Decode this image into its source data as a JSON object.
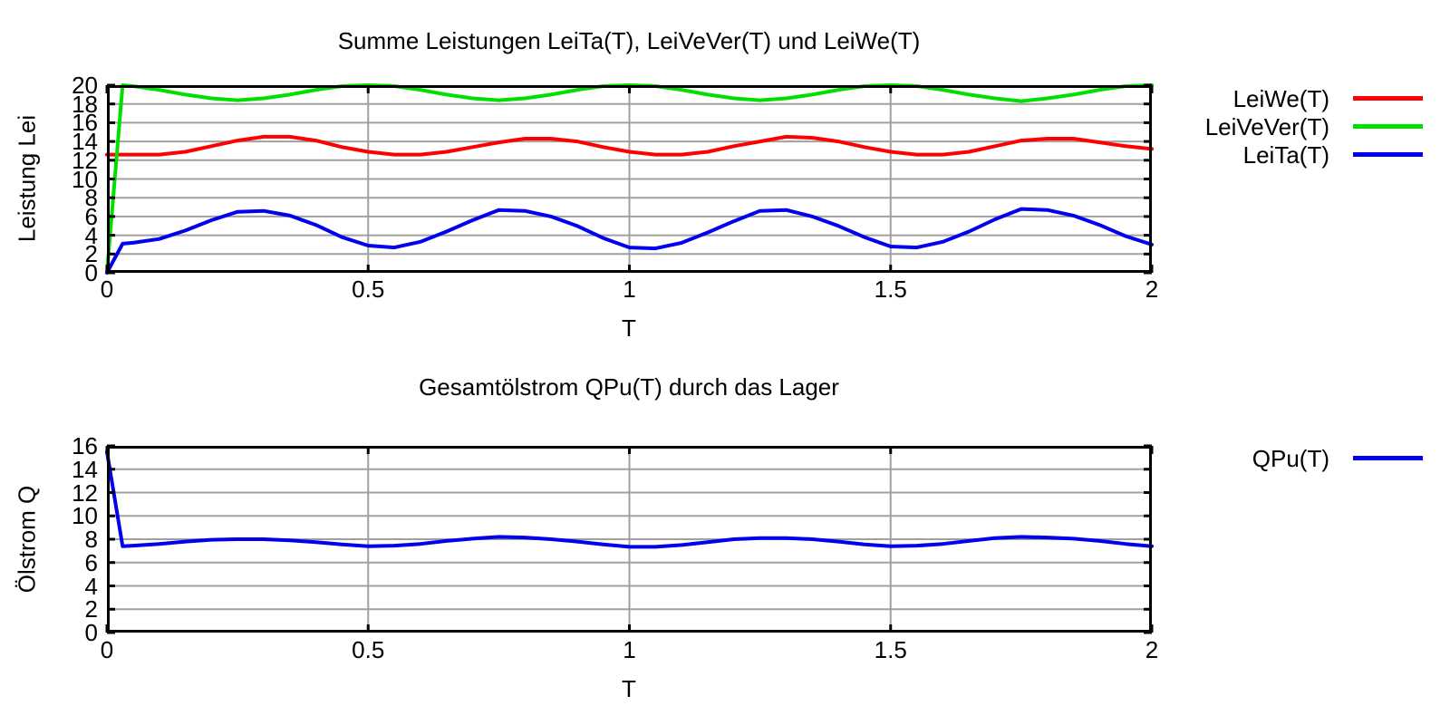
{
  "colors": {
    "background": "#ffffff",
    "frame": "#000000",
    "grid": "#a0a0a0",
    "text": "#000000",
    "series_red": "#ff0000",
    "series_green": "#00e000",
    "series_blue": "#0000ee"
  },
  "charts": [
    {
      "title": "Summe Leistungen LeiTa(T), LeiVeVer(T) und LeiWe(T)",
      "xlabel": "T",
      "ylabel": "Leistung Lei",
      "chart_data": {
        "type": "line",
        "xlim": [
          0,
          2
        ],
        "ylim": [
          0,
          20
        ],
        "grid": true,
        "legend_position": "outside-right",
        "xticks": [
          {
            "value": 0,
            "label": "0"
          },
          {
            "value": 0.5,
            "label": "0.5"
          },
          {
            "value": 1,
            "label": "1"
          },
          {
            "value": 1.5,
            "label": "1.5"
          },
          {
            "value": 2,
            "label": "2"
          }
        ],
        "yticks": [
          {
            "value": 0,
            "label": "0"
          },
          {
            "value": 2,
            "label": "2"
          },
          {
            "value": 4,
            "label": "4"
          },
          {
            "value": 6,
            "label": "6"
          },
          {
            "value": 8,
            "label": "8"
          },
          {
            "value": 10,
            "label": "10"
          },
          {
            "value": 12,
            "label": "12"
          },
          {
            "value": 14,
            "label": "14"
          },
          {
            "value": 16,
            "label": "16"
          },
          {
            "value": 18,
            "label": "18"
          },
          {
            "value": 20,
            "label": "20"
          }
        ],
        "x": [
          0,
          0.03,
          0.05,
          0.1,
          0.15,
          0.2,
          0.25,
          0.3,
          0.35,
          0.4,
          0.45,
          0.5,
          0.55,
          0.6,
          0.65,
          0.7,
          0.75,
          0.8,
          0.85,
          0.9,
          0.95,
          1.0,
          1.05,
          1.1,
          1.15,
          1.2,
          1.25,
          1.3,
          1.35,
          1.4,
          1.45,
          1.5,
          1.55,
          1.6,
          1.65,
          1.7,
          1.75,
          1.8,
          1.85,
          1.9,
          1.95,
          2.0
        ],
        "series": [
          {
            "name": "LeiWe(T)",
            "color_key": "series_red",
            "values": [
              12.6,
              12.6,
              12.6,
              12.6,
              12.9,
              13.5,
              14.1,
              14.5,
              14.5,
              14.1,
              13.4,
              12.9,
              12.6,
              12.6,
              12.9,
              13.4,
              13.9,
              14.3,
              14.3,
              14.0,
              13.4,
              12.9,
              12.6,
              12.6,
              12.9,
              13.5,
              14.0,
              14.5,
              14.4,
              14.0,
              13.4,
              12.9,
              12.6,
              12.6,
              12.9,
              13.5,
              14.1,
              14.3,
              14.3,
              13.9,
              13.5,
              13.2
            ]
          },
          {
            "name": "LeiVeVer(T)",
            "color_key": "series_green",
            "values": [
              0,
              20,
              19.9,
              19.5,
              19.0,
              18.6,
              18.4,
              18.6,
              19.0,
              19.5,
              19.9,
              20,
              19.9,
              19.5,
              19.0,
              18.6,
              18.4,
              18.6,
              19.0,
              19.5,
              19.9,
              20,
              19.9,
              19.5,
              19.0,
              18.6,
              18.4,
              18.6,
              19.0,
              19.5,
              19.9,
              20,
              19.9,
              19.5,
              19.0,
              18.6,
              18.3,
              18.6,
              19.0,
              19.5,
              19.9,
              20
            ]
          },
          {
            "name": "LeiTa(T)",
            "color_key": "series_blue",
            "values": [
              0,
              3.1,
              3.2,
              3.6,
              4.5,
              5.6,
              6.5,
              6.6,
              6.1,
              5.1,
              3.8,
              2.9,
              2.7,
              3.3,
              4.4,
              5.6,
              6.7,
              6.6,
              6.0,
              5.0,
              3.7,
              2.7,
              2.6,
              3.2,
              4.3,
              5.5,
              6.6,
              6.7,
              6.0,
              5.0,
              3.8,
              2.8,
              2.7,
              3.3,
              4.4,
              5.7,
              6.8,
              6.7,
              6.1,
              5.1,
              3.9,
              3.0
            ]
          }
        ]
      }
    },
    {
      "title": "Gesamtölstrom QPu(T) durch das Lager",
      "xlabel": "T",
      "ylabel": "Ölstrom Q",
      "chart_data": {
        "type": "line",
        "xlim": [
          0,
          2
        ],
        "ylim": [
          0,
          16
        ],
        "grid": true,
        "legend_position": "outside-right",
        "xticks": [
          {
            "value": 0,
            "label": "0"
          },
          {
            "value": 0.5,
            "label": "0.5"
          },
          {
            "value": 1,
            "label": "1"
          },
          {
            "value": 1.5,
            "label": "1.5"
          },
          {
            "value": 2,
            "label": "2"
          }
        ],
        "yticks": [
          {
            "value": 0,
            "label": "0"
          },
          {
            "value": 2,
            "label": "2"
          },
          {
            "value": 4,
            "label": "4"
          },
          {
            "value": 6,
            "label": "6"
          },
          {
            "value": 8,
            "label": "8"
          },
          {
            "value": 10,
            "label": "10"
          },
          {
            "value": 12,
            "label": "12"
          },
          {
            "value": 14,
            "label": "14"
          },
          {
            "value": 16,
            "label": "16"
          }
        ],
        "x": [
          0,
          0.03,
          0.05,
          0.1,
          0.15,
          0.2,
          0.25,
          0.3,
          0.35,
          0.4,
          0.45,
          0.5,
          0.55,
          0.6,
          0.65,
          0.7,
          0.75,
          0.8,
          0.85,
          0.9,
          0.95,
          1.0,
          1.05,
          1.1,
          1.15,
          1.2,
          1.25,
          1.3,
          1.35,
          1.4,
          1.45,
          1.5,
          1.55,
          1.6,
          1.65,
          1.7,
          1.75,
          1.8,
          1.85,
          1.9,
          1.95,
          2.0
        ],
        "series": [
          {
            "name": "QPu(T)",
            "color_key": "series_blue",
            "values": [
              15.5,
              7.4,
              7.45,
              7.6,
              7.8,
              7.95,
              8.0,
              8.0,
              7.9,
              7.75,
              7.55,
              7.4,
              7.45,
              7.6,
              7.85,
              8.05,
              8.2,
              8.15,
              8.0,
              7.8,
              7.55,
              7.35,
              7.35,
              7.5,
              7.75,
              8.0,
              8.1,
              8.1,
              8.0,
              7.8,
              7.55,
              7.4,
              7.45,
              7.6,
              7.85,
              8.1,
              8.2,
              8.15,
              8.05,
              7.85,
              7.6,
              7.4
            ]
          }
        ]
      }
    }
  ]
}
